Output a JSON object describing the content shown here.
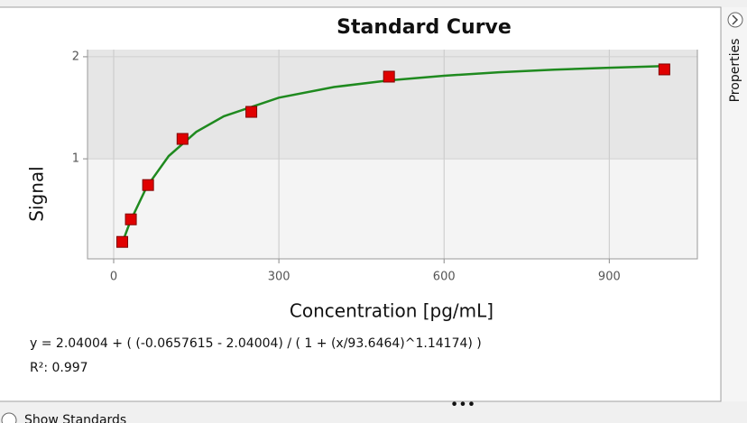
{
  "chart_data": {
    "type": "scatter",
    "title": "Standard Curve",
    "x_label": "Concentration [pg/mL]",
    "y_label": "Signal",
    "x": [
      15.6,
      31.25,
      62.5,
      125,
      250,
      500,
      1000
    ],
    "values": [
      0.186,
      0.407,
      0.743,
      1.195,
      1.46,
      1.805,
      1.876
    ],
    "color": "#e00000",
    "fit": {
      "color": "#1f8a1f",
      "x": [
        15,
        30,
        60,
        100,
        150,
        200,
        300,
        400,
        500,
        600,
        700,
        800,
        900,
        1000
      ],
      "values": [
        0.166,
        0.385,
        0.725,
        1.027,
        1.264,
        1.417,
        1.599,
        1.703,
        1.769,
        1.814,
        1.848,
        1.873,
        1.892,
        1.908
      ]
    },
    "xlim": [
      -47.5,
      1060
    ],
    "ylim": [
      0.02,
      2.07
    ],
    "xticks": [
      0,
      300,
      600,
      900
    ],
    "yticks": [
      1,
      2
    ],
    "grid": true,
    "equation": "y = 2.04004 + ( (-0.0657615 - 2.04004) / ( 1 + (x/93.6464)^1.14174) )",
    "r2": "R²: 0.997"
  },
  "side_tab": "Properties",
  "footer": "Show Standards"
}
